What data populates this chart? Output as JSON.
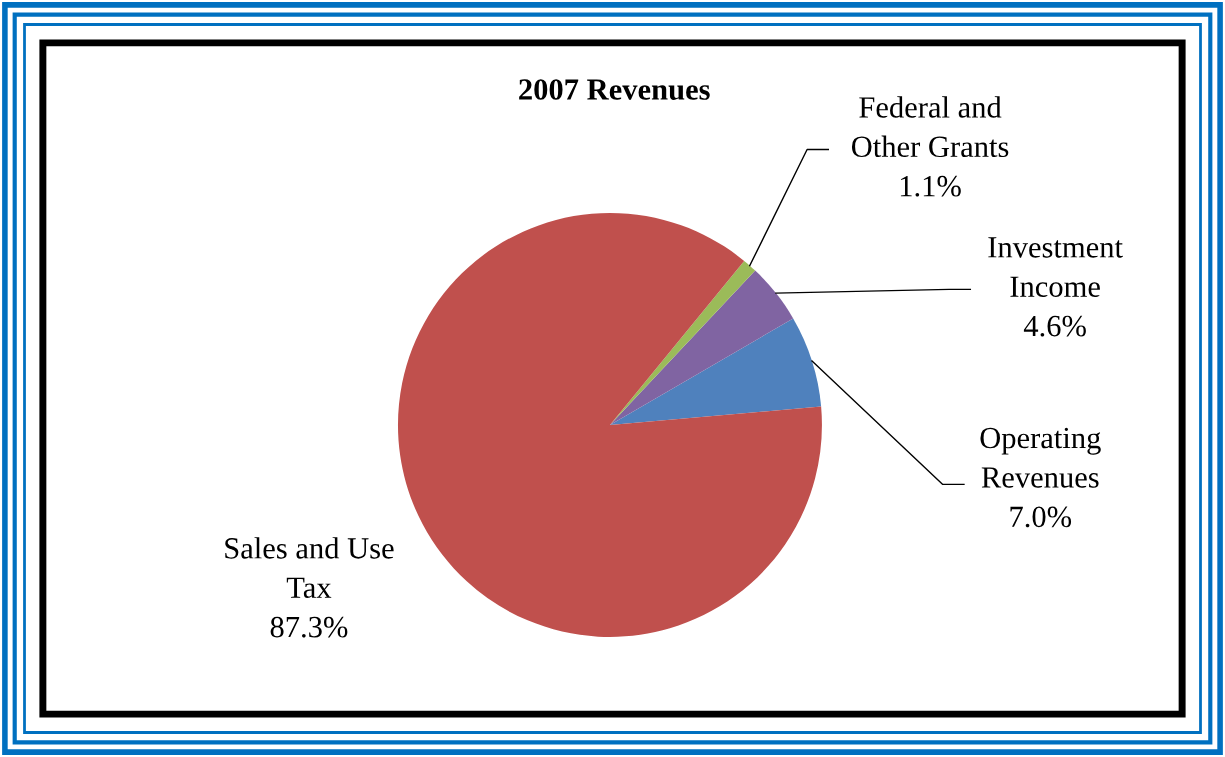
{
  "chart_data": {
    "type": "pie",
    "title": "2007 Revenues",
    "categories": [
      "Operating\nRevenues",
      "Investment\nIncome",
      "Federal and\nOther Grants",
      "Sales and Use\nTax"
    ],
    "values": [
      7.0,
      4.6,
      1.1,
      87.3
    ],
    "colors": [
      "#4f81bd",
      "#8064a2",
      "#9bbb59",
      "#c0504d"
    ],
    "value_labels": [
      "7.0%",
      "4.6%",
      "1.1%",
      "87.3%"
    ]
  }
}
